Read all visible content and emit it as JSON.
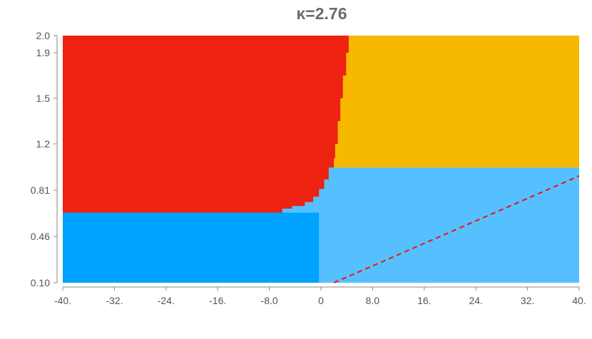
{
  "chart_data": {
    "type": "region-map",
    "title": "κ=2.76",
    "xlabel": "",
    "ylabel": "",
    "xlim": [
      -40,
      40
    ],
    "y_ticks": [
      "0.10",
      "0.46",
      "0.81",
      "1.2",
      "1.5",
      "1.9",
      "2.0"
    ],
    "x_ticks": [
      "-40.",
      "-32.",
      "-24.",
      "-16.",
      "-8.0",
      "0",
      "8.0",
      "16.",
      "24.",
      "32.",
      "40."
    ],
    "x_tick_values": [
      -40,
      -32,
      -24,
      -16,
      -8,
      0,
      8,
      16,
      24,
      32,
      40
    ],
    "colors": {
      "red": "#ee2210",
      "orange": "#f7b800",
      "blue": "#00a2ff",
      "light_blue": "#56c0ff",
      "dashed": "#e02020"
    },
    "boundaries": {
      "red_orange": [
        [
          4.7,
          2.0
        ],
        [
          4.3,
          1.9
        ],
        [
          3.9,
          1.7
        ],
        [
          3.4,
          1.5
        ],
        [
          3.0,
          1.35
        ],
        [
          2.6,
          1.2
        ],
        [
          2.2,
          1.08
        ],
        [
          2.0,
          1.0
        ],
        [
          1.2,
          0.9
        ],
        [
          0.5,
          0.82
        ],
        [
          -0.3,
          0.76
        ],
        [
          -1.2,
          0.72
        ],
        [
          -2.5,
          0.69
        ],
        [
          -4.5,
          0.67
        ],
        [
          -6.0,
          0.66
        ]
      ],
      "orange_lightblue_y": 1.0,
      "red_blue_y": 0.64,
      "blue_lightblue_x": -0.3
    },
    "dashed_line": {
      "from": [
        2.0,
        0.1
      ],
      "to": [
        40.0,
        0.93
      ]
    }
  }
}
